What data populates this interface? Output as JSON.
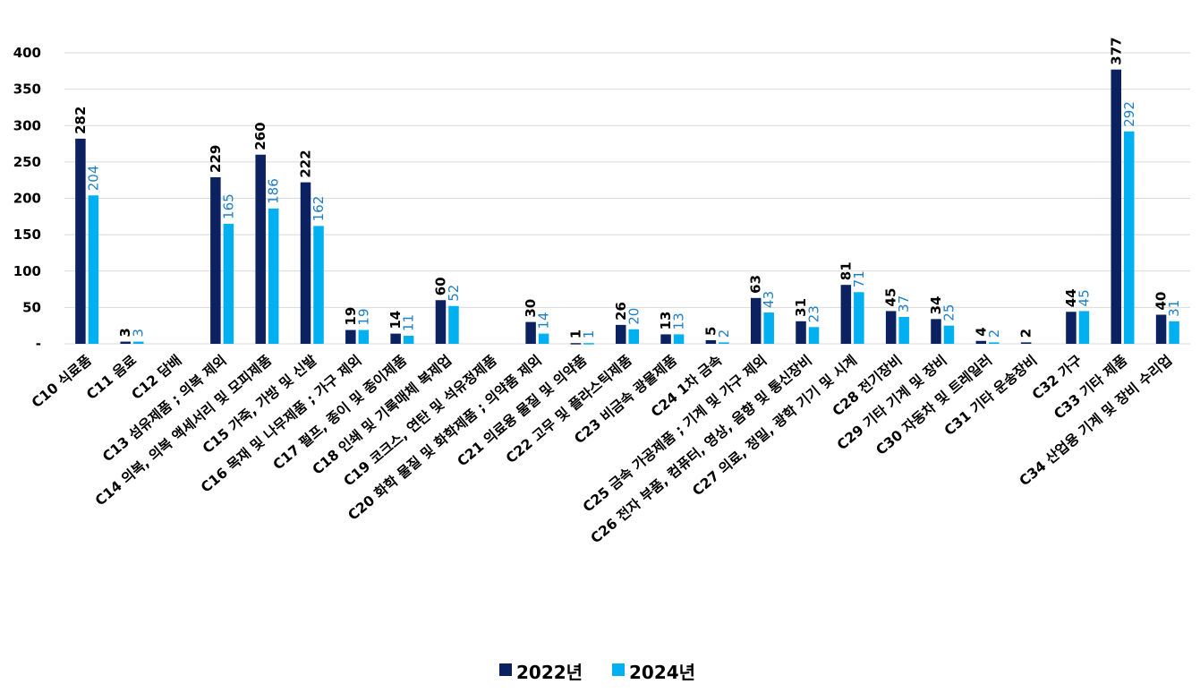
{
  "chart_data": {
    "type": "bar",
    "ylim": [
      0,
      400
    ],
    "yticks": [
      0,
      50,
      100,
      150,
      200,
      250,
      300,
      350,
      400
    ],
    "ytick_labels": [
      "-",
      "50",
      "100",
      "150",
      "200",
      "250",
      "300",
      "350",
      "400"
    ],
    "grid": true,
    "legend_position": "bottom-center",
    "categories": [
      "C10 식료품",
      "C11 음료",
      "C12 담배",
      "C13 섬유제품 ; 의복 제외",
      "C14 의복, 의복 액세서리 및 모피제품",
      "C15 가죽, 가방 및 신발",
      "C16 목재 및 나무제품 ; 가구 제외",
      "C17 펄프, 종이 및 종이제품",
      "C18 인쇄 및 기록매체 복제업",
      "C19 코크스, 연탄 및 석유정제품",
      "C20 화학 물질 및 화학제품 ; 의약품 제외",
      "C21 의료용 물질 및 의약품",
      "C22 고무 및 플라스틱제품",
      "C23 비금속 광물제품",
      "C24 1차 금속",
      "C25 금속 가공제품 ; 기계 및 가구 제외",
      "C26 전자 부품, 컴퓨터, 영상, 음향 및 통신장비",
      "C27 의료, 정밀, 광학 기기 및 시계",
      "C28 전기장비",
      "C29 기타 기계 및 장비",
      "C30 자동차 및 트레일러",
      "C31 기타 운송장비",
      "C32 가구",
      "C33 기타 제품",
      "C34 산업용 기계 및 장비 수리업"
    ],
    "series": [
      {
        "name": "2022년",
        "color": "#0b2160",
        "values": [
          282,
          3,
          null,
          229,
          260,
          222,
          19,
          14,
          60,
          null,
          30,
          1,
          26,
          13,
          5,
          63,
          31,
          81,
          45,
          34,
          4,
          2,
          44,
          377,
          40
        ]
      },
      {
        "name": "2024년",
        "color": "#00b0f0",
        "values": [
          204,
          3,
          null,
          165,
          186,
          162,
          19,
          11,
          52,
          null,
          14,
          1,
          20,
          13,
          2,
          43,
          23,
          71,
          37,
          25,
          2,
          null,
          45,
          292,
          31
        ]
      }
    ]
  }
}
